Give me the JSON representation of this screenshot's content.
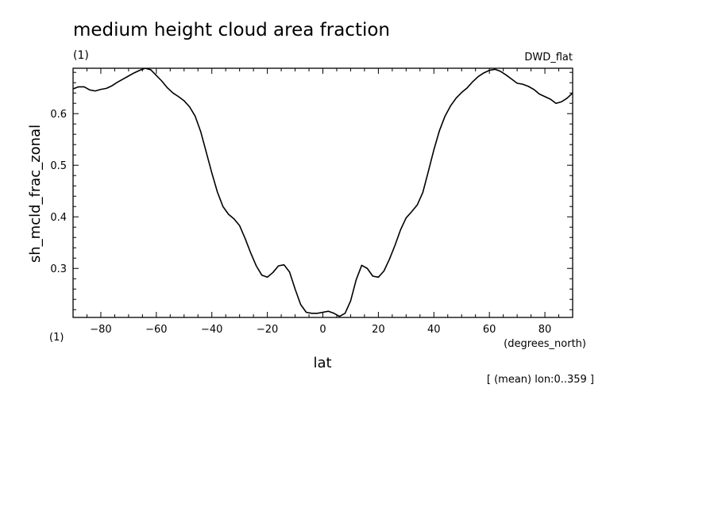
{
  "chart_data": {
    "type": "line",
    "title": "medium height cloud area fraction",
    "title_unit": "(1)",
    "dataset": "DWD_flat",
    "ylabel": "sh_mcld_frac_zonal",
    "ylabel_unit": "(1)",
    "xlabel": "lat",
    "xlabel_unit": "(degrees_north)",
    "footnote": "[ (mean) lon:0..359 ]",
    "xlim": [
      -90,
      90
    ],
    "ylim": [
      0.205,
      0.688
    ],
    "x_ticks": [
      -80,
      -60,
      -40,
      -20,
      0,
      20,
      40,
      60,
      80
    ],
    "y_ticks": [
      0.3,
      0.4,
      0.5,
      0.6
    ],
    "grid": false,
    "series": [
      {
        "x": [
          -90,
          -88,
          -86,
          -84,
          -82,
          -80,
          -78,
          -76,
          -74,
          -72,
          -70,
          -68,
          -66,
          -64,
          -62,
          -60,
          -58,
          -56,
          -54,
          -52,
          -50,
          -48,
          -46,
          -44,
          -42,
          -40,
          -38,
          -36,
          -34,
          -32,
          -30,
          -28,
          -26,
          -24,
          -22,
          -20,
          -18,
          -16,
          -14,
          -12,
          -10,
          -8,
          -6,
          -4,
          -2,
          0,
          2,
          4,
          6,
          8,
          10,
          12,
          14,
          16,
          18,
          20,
          22,
          24,
          26,
          28,
          30,
          32,
          34,
          36,
          38,
          40,
          42,
          44,
          46,
          48,
          50,
          52,
          54,
          56,
          58,
          60,
          62,
          64,
          66,
          68,
          70,
          72,
          74,
          76,
          78,
          80,
          82,
          84,
          86,
          88,
          90
        ],
        "values": [
          0.648,
          0.652,
          0.652,
          0.646,
          0.644,
          0.647,
          0.649,
          0.654,
          0.661,
          0.667,
          0.673,
          0.679,
          0.684,
          0.688,
          0.685,
          0.674,
          0.663,
          0.65,
          0.64,
          0.633,
          0.625,
          0.613,
          0.595,
          0.565,
          0.525,
          0.485,
          0.448,
          0.42,
          0.405,
          0.396,
          0.383,
          0.358,
          0.33,
          0.305,
          0.287,
          0.283,
          0.292,
          0.305,
          0.307,
          0.293,
          0.26,
          0.23,
          0.215,
          0.213,
          0.213,
          0.215,
          0.217,
          0.213,
          0.207,
          0.213,
          0.237,
          0.278,
          0.306,
          0.3,
          0.285,
          0.283,
          0.295,
          0.318,
          0.345,
          0.375,
          0.398,
          0.41,
          0.423,
          0.447,
          0.488,
          0.53,
          0.567,
          0.595,
          0.615,
          0.63,
          0.641,
          0.65,
          0.662,
          0.672,
          0.679,
          0.684,
          0.686,
          0.682,
          0.675,
          0.667,
          0.659,
          0.657,
          0.653,
          0.647,
          0.638,
          0.633,
          0.628,
          0.62,
          0.623,
          0.63,
          0.64
        ]
      }
    ]
  }
}
